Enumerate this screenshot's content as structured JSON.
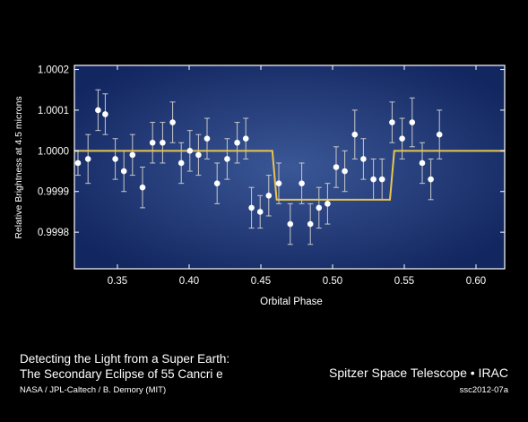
{
  "chart_data": {
    "type": "scatter",
    "xlabel": "Orbital Phase",
    "ylabel": "Relative Brightness at 4.5 microns",
    "xlim": [
      0.32,
      0.62
    ],
    "ylim": [
      0.99971,
      1.00021
    ],
    "xticks": [
      0.35,
      0.4,
      0.45,
      0.5,
      0.55,
      0.6
    ],
    "xtick_labels": [
      "0.35",
      "0.40",
      "0.45",
      "0.50",
      "0.55",
      "0.60"
    ],
    "yticks": [
      0.9998,
      0.9999,
      1.0,
      1.0001,
      1.0002
    ],
    "ytick_labels": [
      "0.9998",
      "0.9999",
      "1.0000",
      "1.0001",
      "1.0002"
    ],
    "grid": false,
    "colors": {
      "points": "#ffffff",
      "errorbars": "#c8c8c8",
      "model": "#e8c550",
      "background_inner": "#3b5796",
      "background_outer": "#122660"
    },
    "points": [
      {
        "x": 0.3225,
        "y": 0.99997,
        "err": 3e-05
      },
      {
        "x": 0.3295,
        "y": 0.99998,
        "err": 6e-05
      },
      {
        "x": 0.3365,
        "y": 1.0001,
        "err": 5e-05
      },
      {
        "x": 0.3415,
        "y": 1.00009,
        "err": 5e-05
      },
      {
        "x": 0.3485,
        "y": 0.99998,
        "err": 5e-05
      },
      {
        "x": 0.3545,
        "y": 0.99995,
        "err": 5e-05
      },
      {
        "x": 0.3605,
        "y": 0.99999,
        "err": 5e-05
      },
      {
        "x": 0.3675,
        "y": 0.99991,
        "err": 5e-05
      },
      {
        "x": 0.3745,
        "y": 1.00002,
        "err": 5e-05
      },
      {
        "x": 0.3815,
        "y": 1.00002,
        "err": 5e-05
      },
      {
        "x": 0.3885,
        "y": 1.00007,
        "err": 5e-05
      },
      {
        "x": 0.3945,
        "y": 0.99997,
        "err": 5e-05
      },
      {
        "x": 0.4005,
        "y": 1.0,
        "err": 5e-05
      },
      {
        "x": 0.4065,
        "y": 0.99999,
        "err": 5e-05
      },
      {
        "x": 0.4125,
        "y": 1.00003,
        "err": 5e-05
      },
      {
        "x": 0.4195,
        "y": 0.99992,
        "err": 5e-05
      },
      {
        "x": 0.4265,
        "y": 0.99998,
        "err": 5e-05
      },
      {
        "x": 0.4335,
        "y": 1.00002,
        "err": 5e-05
      },
      {
        "x": 0.4395,
        "y": 1.00003,
        "err": 5e-05
      },
      {
        "x": 0.4435,
        "y": 0.99986,
        "err": 5e-05
      },
      {
        "x": 0.4495,
        "y": 0.99985,
        "err": 4e-05
      },
      {
        "x": 0.4555,
        "y": 0.99989,
        "err": 5e-05
      },
      {
        "x": 0.4625,
        "y": 0.99992,
        "err": 5e-05
      },
      {
        "x": 0.4705,
        "y": 0.99982,
        "err": 5e-05
      },
      {
        "x": 0.4785,
        "y": 0.99992,
        "err": 5e-05
      },
      {
        "x": 0.4845,
        "y": 0.99982,
        "err": 5e-05
      },
      {
        "x": 0.4905,
        "y": 0.99986,
        "err": 5e-05
      },
      {
        "x": 0.4965,
        "y": 0.99987,
        "err": 5e-05
      },
      {
        "x": 0.5025,
        "y": 0.99996,
        "err": 5e-05
      },
      {
        "x": 0.5085,
        "y": 0.99995,
        "err": 5e-05
      },
      {
        "x": 0.5155,
        "y": 1.00004,
        "err": 6e-05
      },
      {
        "x": 0.5215,
        "y": 0.99998,
        "err": 5e-05
      },
      {
        "x": 0.5285,
        "y": 0.99993,
        "err": 5e-05
      },
      {
        "x": 0.5345,
        "y": 0.99993,
        "err": 5e-05
      },
      {
        "x": 0.5415,
        "y": 1.00007,
        "err": 5e-05
      },
      {
        "x": 0.5485,
        "y": 1.00003,
        "err": 5e-05
      },
      {
        "x": 0.5555,
        "y": 1.00007,
        "err": 6e-05
      },
      {
        "x": 0.5625,
        "y": 0.99997,
        "err": 5e-05
      },
      {
        "x": 0.5685,
        "y": 0.99993,
        "err": 5e-05
      },
      {
        "x": 0.5745,
        "y": 1.00004,
        "err": 6e-05
      }
    ],
    "model": [
      {
        "x": 0.32,
        "y": 1.0
      },
      {
        "x": 0.458,
        "y": 1.0
      },
      {
        "x": 0.461,
        "y": 0.99988
      },
      {
        "x": 0.54,
        "y": 0.99988
      },
      {
        "x": 0.543,
        "y": 1.0
      },
      {
        "x": 0.62,
        "y": 1.0
      }
    ]
  },
  "caption": {
    "title_line1": "Detecting the Light from a Super Earth:",
    "title_line2": "The Secondary Eclipse of 55 Cancri e",
    "credit": "NASA / JPL-Caltech / B. Demory (MIT)",
    "mission": "Spitzer Space Telescope • IRAC",
    "code": "ssc2012-07a"
  }
}
